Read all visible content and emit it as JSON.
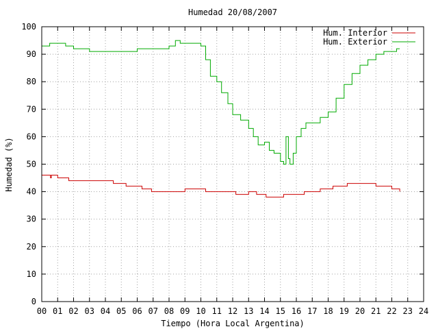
{
  "chart_data": {
    "type": "line",
    "title": "Humedad 20/08/2007",
    "xlabel": "Tiempo (Hora Local Argentina)",
    "ylabel": "Humedad (%)",
    "xlim": [
      0,
      24
    ],
    "ylim": [
      0,
      100
    ],
    "grid": true,
    "legend_position": "top-right",
    "x_ticks": [
      "00",
      "01",
      "02",
      "03",
      "04",
      "05",
      "06",
      "07",
      "08",
      "09",
      "10",
      "11",
      "12",
      "13",
      "14",
      "15",
      "16",
      "17",
      "18",
      "19",
      "20",
      "21",
      "22",
      "23",
      "24"
    ],
    "y_ticks": [
      "0",
      "10",
      "20",
      "30",
      "40",
      "50",
      "60",
      "70",
      "80",
      "90",
      "100"
    ],
    "series": [
      {
        "name": "Hum. Interior",
        "color": "#cc0000",
        "x": [
          0,
          0.5,
          0.55,
          0.6,
          1.0,
          1.7,
          3.0,
          4.5,
          5.3,
          6.3,
          6.9,
          9.0,
          10.3,
          11.5,
          12.2,
          12.6,
          13.0,
          13.5,
          14.1,
          15.2,
          15.8,
          16.5,
          17.5,
          18.3,
          19.2,
          20.5,
          21.0,
          22.0,
          22.5
        ],
        "y": [
          46,
          46,
          45,
          46,
          45,
          44,
          44,
          43,
          42,
          41,
          40,
          41,
          40,
          40,
          39,
          39,
          40,
          39,
          38,
          39,
          39,
          40,
          41,
          42,
          43,
          43,
          42,
          41,
          40
        ]
      },
      {
        "name": "Hum. Exterior",
        "color": "#00aa00",
        "x": [
          0,
          0.5,
          1.5,
          2.0,
          3.0,
          5.0,
          6.0,
          7.0,
          8.0,
          8.4,
          8.7,
          9.5,
          10.0,
          10.3,
          10.6,
          11.0,
          11.3,
          11.7,
          12.0,
          12.5,
          13.0,
          13.3,
          13.6,
          14.0,
          14.3,
          14.6,
          15.0,
          15.2,
          15.35,
          15.5,
          15.6,
          15.8,
          16.0,
          16.3,
          16.6,
          17.0,
          17.5,
          18.0,
          18.5,
          19.0,
          19.3,
          19.5,
          20.0,
          20.5,
          21.0,
          21.5,
          22.0,
          22.3,
          22.5
        ],
        "y": [
          93,
          94,
          93,
          92,
          91,
          91,
          92,
          92,
          93,
          95,
          94,
          94,
          93,
          88,
          82,
          80,
          76,
          72,
          68,
          66,
          63,
          60,
          57,
          58,
          55,
          54,
          51,
          50,
          60,
          52,
          50,
          54,
          60,
          63,
          65,
          65,
          67,
          69,
          74,
          79,
          79,
          83,
          86,
          88,
          90,
          91,
          91,
          92,
          92
        ]
      }
    ]
  }
}
